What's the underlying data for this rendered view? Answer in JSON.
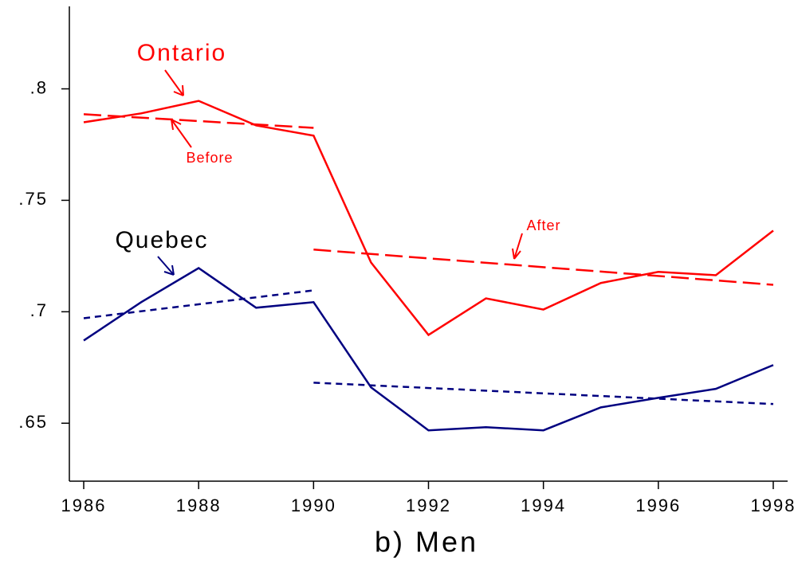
{
  "chart_data": {
    "type": "line",
    "xlabel": "b) Men",
    "xlim": [
      1985.75,
      1998.25
    ],
    "ylim": [
      0.624,
      0.837
    ],
    "xticks": [
      1986,
      1988,
      1990,
      1992,
      1994,
      1996,
      1998
    ],
    "yticks": [
      {
        "value": 0.65,
        "label": ".65"
      },
      {
        "value": 0.7,
        "label": ".7"
      },
      {
        "value": 0.75,
        "label": ".75"
      },
      {
        "value": 0.8,
        "label": ".8"
      }
    ],
    "series": [
      {
        "name": "Ontario",
        "color": "#ff0000",
        "dash": "solid",
        "x": [
          1986,
          1987,
          1988,
          1989,
          1990,
          1991,
          1992,
          1993,
          1994,
          1995,
          1996,
          1997,
          1998
        ],
        "values": [
          0.785,
          0.789,
          0.7946,
          0.7836,
          0.779,
          0.7221,
          0.6896,
          0.706,
          0.701,
          0.7129,
          0.7179,
          0.7164,
          0.7364
        ]
      },
      {
        "name": "Quebec",
        "color": "#000080",
        "dash": "solid",
        "x": [
          1986,
          1987,
          1988,
          1989,
          1990,
          1991,
          1992,
          1993,
          1994,
          1995,
          1996,
          1997,
          1998
        ],
        "values": [
          0.6871,
          0.7043,
          0.7196,
          0.7018,
          0.7043,
          0.6661,
          0.6468,
          0.6482,
          0.6468,
          0.6571,
          0.6614,
          0.6654,
          0.6761
        ]
      },
      {
        "color": "#ff0000",
        "dash": "long",
        "x": [
          1986,
          1990
        ],
        "values": [
          0.7886,
          0.7825
        ]
      },
      {
        "color": "#ff0000",
        "dash": "long",
        "x": [
          1990,
          1998
        ],
        "values": [
          0.7279,
          0.7121
        ]
      },
      {
        "color": "#000080",
        "dash": "short",
        "x": [
          1986,
          1990
        ],
        "values": [
          0.6971,
          0.7096
        ]
      },
      {
        "color": "#000080",
        "dash": "short",
        "x": [
          1990,
          1998
        ],
        "values": [
          0.6682,
          0.6586
        ]
      }
    ],
    "annotations": [
      "Before",
      "After"
    ]
  }
}
